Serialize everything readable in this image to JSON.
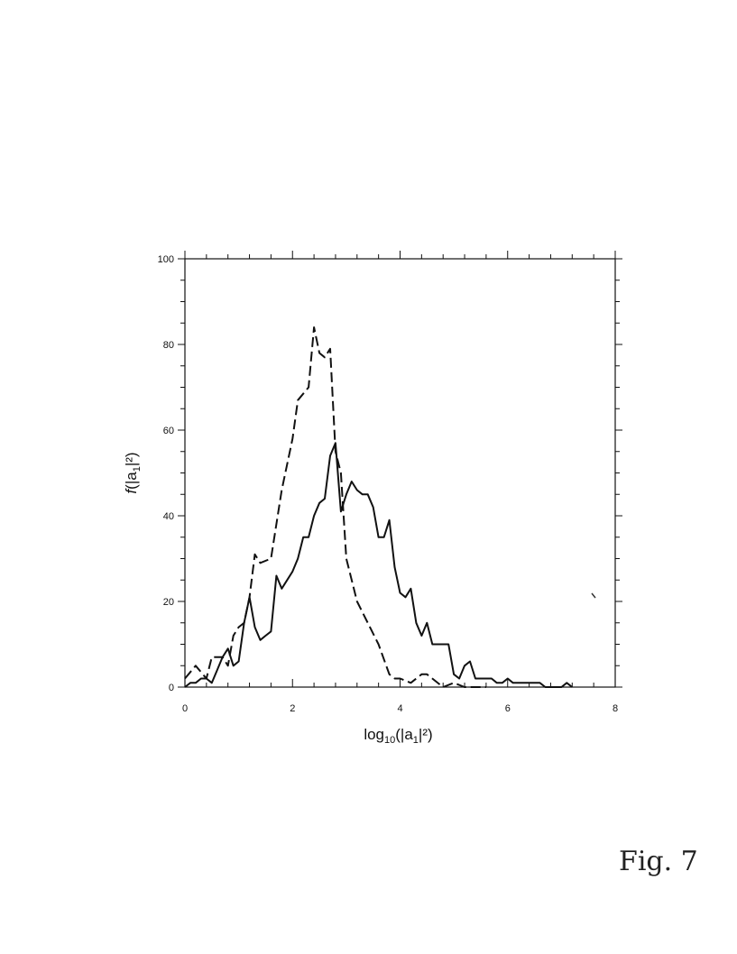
{
  "chart_data": {
    "type": "line",
    "title": "",
    "xlim": [
      0,
      8
    ],
    "ylim": [
      0,
      100
    ],
    "x_ticks": [
      0,
      2,
      4,
      6,
      8
    ],
    "y_ticks": [
      0,
      20,
      40,
      60,
      80,
      100
    ],
    "x_minor_step": 0.4,
    "y_minor_step": 5,
    "grid": false,
    "legend": "none",
    "x_label": {
      "prefix": "log",
      "sub": "10",
      "open": "(|a",
      "sub2": "1",
      "close": "|²)"
    },
    "y_label": {
      "prefix": "f",
      "open": "(|a",
      "sub": "1",
      "close": "|²)"
    },
    "series": [
      {
        "style": "dashed",
        "color": "#111111",
        "x": [
          0.0,
          0.2,
          0.4,
          0.5,
          0.7,
          0.8,
          0.9,
          1.0,
          1.1,
          1.2,
          1.3,
          1.4,
          1.6,
          1.8,
          2.0,
          2.1,
          2.3,
          2.4,
          2.5,
          2.6,
          2.7,
          2.8,
          2.9,
          3.0,
          3.2,
          3.4,
          3.6,
          3.8,
          3.9,
          4.0,
          4.2,
          4.4,
          4.5,
          4.8,
          5.0,
          5.2,
          5.6
        ],
        "y": [
          2,
          5,
          2,
          7,
          7,
          5,
          12,
          14,
          15,
          21,
          31,
          29,
          30,
          46,
          58,
          67,
          70,
          84,
          78,
          77,
          79,
          55,
          50,
          30,
          20,
          15,
          10,
          3,
          2,
          2,
          1,
          3,
          3,
          0,
          1,
          0,
          0
        ]
      },
      {
        "style": "solid",
        "color": "#111111",
        "x": [
          0.0,
          0.1,
          0.2,
          0.3,
          0.4,
          0.5,
          0.6,
          0.7,
          0.8,
          0.9,
          1.0,
          1.1,
          1.2,
          1.3,
          1.4,
          1.5,
          1.6,
          1.7,
          1.8,
          1.9,
          2.0,
          2.1,
          2.2,
          2.3,
          2.4,
          2.5,
          2.6,
          2.7,
          2.8,
          2.9,
          3.0,
          3.1,
          3.2,
          3.3,
          3.4,
          3.5,
          3.6,
          3.7,
          3.8,
          3.9,
          4.0,
          4.1,
          4.2,
          4.3,
          4.4,
          4.5,
          4.6,
          4.7,
          4.8,
          4.9,
          5.0,
          5.1,
          5.2,
          5.3,
          5.4,
          5.5,
          5.6,
          5.7,
          5.8,
          5.9,
          6.0,
          6.1,
          6.2,
          6.3,
          6.4,
          6.5,
          6.6,
          6.7,
          6.8,
          6.9,
          7.0,
          7.1,
          7.2
        ],
        "y": [
          0,
          1,
          1,
          2,
          2,
          1,
          4,
          7,
          9,
          5,
          6,
          15,
          21,
          14,
          11,
          12,
          13,
          26,
          23,
          25,
          27,
          30,
          35,
          35,
          40,
          43,
          44,
          54,
          57,
          41,
          45,
          48,
          46,
          45,
          45,
          42,
          35,
          35,
          39,
          28,
          22,
          21,
          23,
          15,
          12,
          15,
          10,
          10,
          10,
          10,
          3,
          2,
          5,
          6,
          2,
          2,
          2,
          2,
          1,
          1,
          2,
          1,
          1,
          1,
          1,
          1,
          1,
          0,
          0,
          0,
          0,
          1,
          0
        ]
      }
    ]
  },
  "figure_label": "Fig. 7"
}
